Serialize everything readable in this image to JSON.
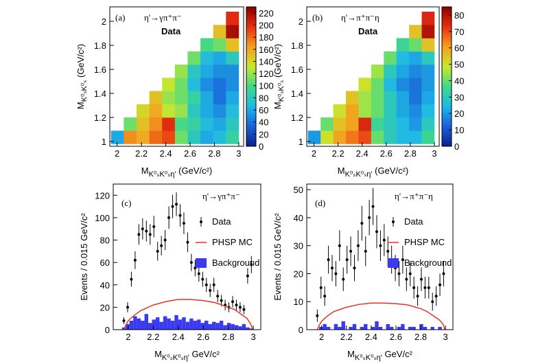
{
  "chart_data": [
    {
      "type": "heatmap",
      "label": "(a)",
      "subtitle": "η'→γπ⁺π⁻",
      "annotation": "Data",
      "xlabel": {
        "main": "M",
        "sub": "K⁰ₛK⁰ₛη'",
        "unit": " (GeV/c²)"
      },
      "ylabel": {
        "main": "M",
        "sub": "K⁰ₛK⁰ₛ",
        "unit": " (GeV/c²)"
      },
      "xlim": [
        1.94,
        3.04
      ],
      "xticks": [
        2,
        2.2,
        2.4,
        2.6,
        2.8,
        3
      ],
      "ylim": [
        0.96,
        2.12
      ],
      "yticks": [
        1,
        1.2,
        1.4,
        1.6,
        1.8,
        2
      ],
      "zlim": [
        0,
        230
      ],
      "zticks": [
        0,
        20,
        40,
        60,
        80,
        100,
        120,
        140,
        160,
        180,
        200,
        220
      ],
      "x_bins": [
        1.95,
        2.055,
        2.16,
        2.265,
        2.37,
        2.475,
        2.58,
        2.685,
        2.79,
        2.895,
        3.0
      ],
      "y_bins": [
        0.98,
        1.09,
        1.2,
        1.31,
        1.42,
        1.53,
        1.64,
        1.75,
        1.86,
        1.97,
        2.08
      ],
      "z": [
        [
          60,
          170,
          160,
          180,
          190,
          110,
          80,
          60,
          70,
          90
        ],
        [
          null,
          110,
          150,
          170,
          200,
          100,
          90,
          70,
          60,
          80
        ],
        [
          null,
          null,
          140,
          160,
          130,
          120,
          80,
          60,
          50,
          70
        ],
        [
          null,
          null,
          null,
          150,
          120,
          110,
          90,
          60,
          40,
          60
        ],
        [
          null,
          null,
          null,
          null,
          130,
          110,
          70,
          50,
          40,
          50
        ],
        [
          null,
          null,
          null,
          null,
          null,
          120,
          80,
          60,
          50,
          50
        ],
        [
          null,
          null,
          null,
          null,
          null,
          null,
          110,
          70,
          60,
          80
        ],
        [
          null,
          null,
          null,
          null,
          null,
          null,
          null,
          100,
          110,
          150
        ],
        [
          null,
          null,
          null,
          null,
          null,
          null,
          null,
          null,
          150,
          220
        ],
        [
          null,
          null,
          null,
          null,
          null,
          null,
          null,
          null,
          null,
          200
        ]
      ]
    },
    {
      "type": "heatmap",
      "label": "(b)",
      "subtitle": "η'→π⁺π⁻η",
      "annotation": "Data",
      "xlabel": {
        "main": "M",
        "sub": "K⁰ₛK⁰ₛη'",
        "unit": " (GeV/c²)"
      },
      "ylabel": {
        "main": "M",
        "sub": "K⁰ₛK⁰ₛ",
        "unit": " (GeV/c²)"
      },
      "xlim": [
        1.94,
        3.04
      ],
      "xticks": [
        2,
        2.2,
        2.4,
        2.6,
        2.8,
        3
      ],
      "ylim": [
        0.96,
        2.12
      ],
      "yticks": [
        1,
        1.2,
        1.4,
        1.6,
        1.8,
        2
      ],
      "zlim": [
        0,
        85
      ],
      "zticks": [
        0,
        10,
        20,
        30,
        40,
        50,
        60,
        70,
        80
      ],
      "x_bins": [
        1.95,
        2.055,
        2.16,
        2.265,
        2.37,
        2.475,
        2.58,
        2.685,
        2.79,
        2.895,
        3.0
      ],
      "y_bins": [
        0.98,
        1.09,
        1.2,
        1.31,
        1.42,
        1.53,
        1.64,
        1.75,
        1.86,
        1.97,
        2.08
      ],
      "z": [
        [
          20,
          50,
          60,
          65,
          70,
          40,
          30,
          25,
          25,
          35
        ],
        [
          null,
          40,
          55,
          60,
          75,
          35,
          30,
          25,
          20,
          30
        ],
        [
          null,
          null,
          50,
          60,
          45,
          40,
          30,
          22,
          18,
          25
        ],
        [
          null,
          null,
          null,
          55,
          45,
          40,
          30,
          22,
          15,
          22
        ],
        [
          null,
          null,
          null,
          null,
          50,
          40,
          25,
          18,
          15,
          20
        ],
        [
          null,
          null,
          null,
          null,
          null,
          45,
          30,
          22,
          18,
          20
        ],
        [
          null,
          null,
          null,
          null,
          null,
          null,
          40,
          25,
          22,
          30
        ],
        [
          null,
          null,
          null,
          null,
          null,
          null,
          null,
          35,
          40,
          55
        ],
        [
          null,
          null,
          null,
          null,
          null,
          null,
          null,
          null,
          55,
          80
        ],
        [
          null,
          null,
          null,
          null,
          null,
          null,
          null,
          null,
          null,
          75
        ]
      ]
    },
    {
      "type": "errorbar",
      "label": "(c)",
      "subtitle": "η'→γπ⁺π⁻",
      "xlabel": {
        "main": "M",
        "sub": "K⁰ₛK⁰ₛη'",
        "unit": " GeV/c²"
      },
      "ylabel": "Events / 0.015 GeV/c²",
      "xlim": [
        1.88,
        3.06
      ],
      "xticks": [
        2,
        2.2,
        2.4,
        2.6,
        2.8,
        3
      ],
      "ylim": [
        0,
        130
      ],
      "yticks": [
        0,
        20,
        40,
        60,
        80,
        100,
        120
      ],
      "x": [
        1.965,
        1.995,
        2.025,
        2.055,
        2.085,
        2.115,
        2.145,
        2.175,
        2.205,
        2.235,
        2.265,
        2.295,
        2.325,
        2.355,
        2.385,
        2.415,
        2.445,
        2.475,
        2.505,
        2.535,
        2.565,
        2.595,
        2.625,
        2.655,
        2.685,
        2.715,
        2.745,
        2.775,
        2.805,
        2.835,
        2.865,
        2.895,
        2.925,
        2.955,
        2.985
      ],
      "series": [
        {
          "name": "Data",
          "kind": "points",
          "color": "#000000",
          "values": [
            8,
            20,
            45,
            62,
            85,
            90,
            88,
            85,
            92,
            70,
            75,
            80,
            100,
            110,
            112,
            102,
            95,
            78,
            60,
            55,
            50,
            45,
            40,
            35,
            40,
            30,
            26,
            22,
            20,
            25,
            22,
            20,
            18,
            48,
            58
          ],
          "errors": [
            3,
            4.5,
            6.7,
            7.9,
            9.2,
            9.5,
            9.4,
            9.2,
            9.6,
            8.4,
            8.7,
            8.9,
            10,
            10.5,
            10.6,
            10.1,
            9.7,
            8.8,
            7.7,
            7.4,
            7.1,
            6.7,
            6.3,
            5.9,
            6.3,
            5.5,
            5.1,
            4.7,
            4.5,
            5,
            4.7,
            4.5,
            4.2,
            6.9,
            7.6
          ]
        },
        {
          "name": "PHSP MC",
          "kind": "line",
          "color": "#e8312a",
          "x": [
            1.965,
            1.98,
            2.0,
            2.05,
            2.1,
            2.2,
            2.3,
            2.4,
            2.5,
            2.6,
            2.7,
            2.8,
            2.85,
            2.9,
            2.95,
            2.98,
            2.995
          ],
          "values": [
            0,
            4,
            8,
            13,
            17,
            22,
            25,
            27,
            27,
            26,
            24,
            20,
            18,
            14,
            10,
            5,
            0
          ]
        },
        {
          "name": "Background",
          "kind": "bars",
          "color": "#3a3af0",
          "values": [
            2,
            5,
            8,
            12,
            10,
            8,
            14,
            6,
            9,
            11,
            7,
            12,
            10,
            8,
            13,
            9,
            11,
            7,
            10,
            8,
            9,
            6,
            8,
            5,
            7,
            6,
            8,
            4,
            6,
            5,
            4,
            3,
            5,
            2,
            1
          ]
        }
      ]
    },
    {
      "type": "errorbar",
      "label": "(d)",
      "subtitle": "η'→π⁺π⁻η",
      "xlabel": {
        "main": "M",
        "sub": "K⁰ₛK⁰ₛη'",
        "unit": " GeV/c²"
      },
      "ylabel": "Events / 0.015 GeV/c²",
      "xlim": [
        1.88,
        3.06
      ],
      "xticks": [
        2,
        2.2,
        2.4,
        2.6,
        2.8,
        3
      ],
      "ylim": [
        0,
        52
      ],
      "yticks": [
        0,
        10,
        20,
        30,
        40,
        50
      ],
      "x": [
        1.965,
        1.995,
        2.025,
        2.055,
        2.085,
        2.115,
        2.145,
        2.175,
        2.205,
        2.235,
        2.265,
        2.295,
        2.325,
        2.355,
        2.385,
        2.415,
        2.445,
        2.475,
        2.505,
        2.535,
        2.565,
        2.595,
        2.625,
        2.655,
        2.685,
        2.715,
        2.745,
        2.775,
        2.805,
        2.835,
        2.865,
        2.895,
        2.925,
        2.955,
        2.985
      ],
      "series": [
        {
          "name": "Data",
          "kind": "points",
          "color": "#000000",
          "values": [
            5,
            15,
            12,
            25,
            22,
            20,
            30,
            18,
            25,
            28,
            22,
            30,
            38,
            28,
            40,
            44,
            35,
            30,
            32,
            28,
            25,
            22,
            20,
            25,
            18,
            20,
            15,
            12,
            18,
            15,
            15,
            10,
            12,
            16,
            20
          ],
          "errors": [
            2.2,
            3.9,
            3.5,
            5,
            4.7,
            4.5,
            5.5,
            4.2,
            5,
            5.3,
            4.7,
            5.5,
            6.2,
            5.3,
            6.3,
            6.6,
            5.9,
            5.5,
            5.7,
            5.3,
            5,
            4.7,
            4.5,
            5,
            4.2,
            4.5,
            3.9,
            3.5,
            4.2,
            3.9,
            3.9,
            3.2,
            3.5,
            4,
            4.5
          ]
        },
        {
          "name": "PHSP MC",
          "kind": "line",
          "color": "#e8312a",
          "x": [
            1.965,
            1.98,
            2.0,
            2.05,
            2.1,
            2.2,
            2.3,
            2.4,
            2.5,
            2.6,
            2.7,
            2.8,
            2.85,
            2.9,
            2.95,
            2.98,
            2.995
          ],
          "values": [
            0,
            1.5,
            3,
            5,
            6.5,
            8,
            9,
            9.5,
            9.5,
            9.3,
            8.8,
            7.5,
            6.5,
            5,
            3.5,
            2,
            0
          ]
        },
        {
          "name": "Background",
          "kind": "bars",
          "color": "#3a3af0",
          "values": [
            0,
            1,
            2,
            1,
            0,
            2,
            1,
            3,
            0,
            1,
            2,
            0,
            1,
            2,
            0,
            1,
            3,
            1,
            0,
            2,
            1,
            0,
            1,
            2,
            0,
            1,
            1,
            0,
            2,
            1,
            0,
            1,
            0,
            1,
            0
          ]
        }
      ]
    }
  ]
}
